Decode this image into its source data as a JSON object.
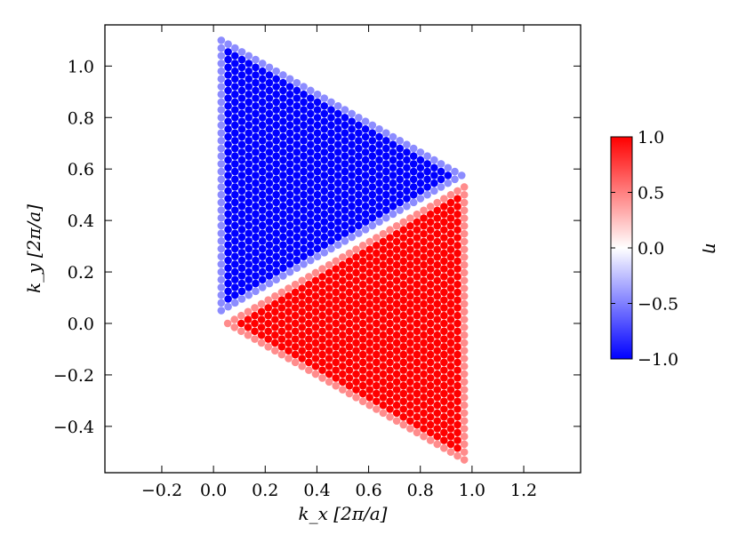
{
  "chart_data": {
    "type": "scatter",
    "title": "",
    "xlabel": "k_x [2π/a]",
    "ylabel": "k_y [2π/a]",
    "xlim": [
      -0.42,
      1.42
    ],
    "ylim": [
      -0.58,
      1.16
    ],
    "x_ticks": [
      -0.2,
      0.0,
      0.2,
      0.4,
      0.6,
      0.8,
      1.0,
      1.2
    ],
    "x_tick_labels": [
      "−0.2",
      "0.0",
      "0.2",
      "0.4",
      "0.6",
      "0.8",
      "1.0",
      "1.2"
    ],
    "y_ticks": [
      -0.4,
      -0.2,
      0.0,
      0.2,
      0.4,
      0.6,
      0.8,
      1.0
    ],
    "y_tick_labels": [
      "−0.4",
      "−0.2",
      "0.0",
      "0.2",
      "0.4",
      "0.6",
      "0.8",
      "1.0"
    ],
    "grid": false,
    "legend": "none",
    "colormap": "bwr",
    "colorbar": {
      "label": "η",
      "range": [
        -1.0,
        1.0
      ],
      "ticks": [
        -1.0,
        -0.5,
        0.0,
        0.5,
        1.0
      ],
      "tick_labels": [
        "−1.0",
        "−0.5",
        "0.0",
        "0.5",
        "1.0"
      ]
    },
    "regions": [
      {
        "region": "upper-left triangle",
        "vertices": [
          [
            0.03,
            1.1
          ],
          [
            0.03,
            0.05
          ],
          [
            0.96,
            0.575
          ]
        ],
        "rows": 36,
        "value": -1.0,
        "edge_value": -0.45
      },
      {
        "region": "lower-right triangle",
        "vertices": [
          [
            0.97,
            0.53
          ],
          [
            0.97,
            -0.53
          ],
          [
            0.055,
            0.0
          ]
        ],
        "rows": 36,
        "value": 1.0,
        "edge_value": 0.45
      }
    ],
    "colors": {
      "negative": "#0000ff",
      "zero": "#ffffff",
      "positive": "#ff0000"
    }
  }
}
